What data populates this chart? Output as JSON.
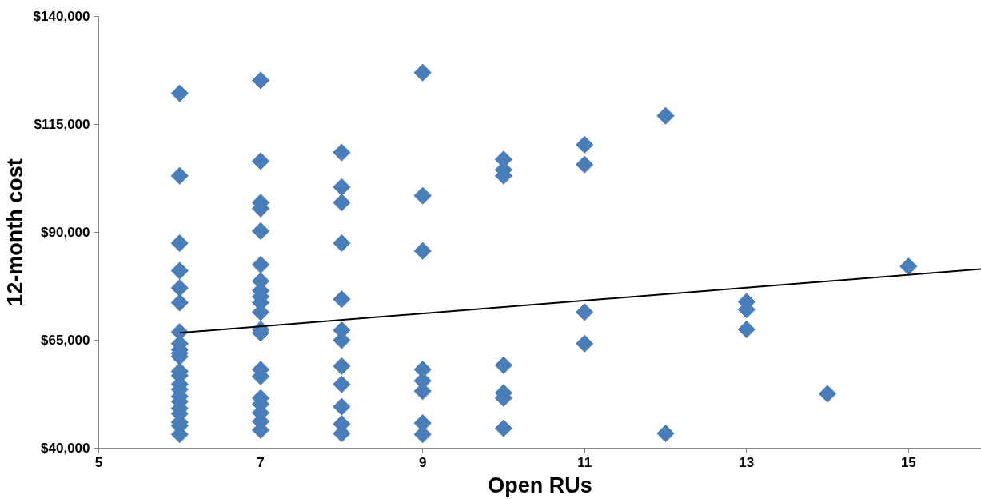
{
  "chart_data": {
    "type": "scatter",
    "xlabel": "Open RUs",
    "ylabel": "12-month cost",
    "grid": false,
    "xlim": [
      5,
      15.9
    ],
    "xticks": [
      5,
      7,
      9,
      11,
      13,
      15
    ],
    "ylim": [
      40000,
      140000
    ],
    "yticks": [
      {
        "value": 40000,
        "label": "$40,000"
      },
      {
        "value": 65000,
        "label": "$65,000"
      },
      {
        "value": 90000,
        "label": "$90,000"
      },
      {
        "value": 115000,
        "label": "$115,000"
      },
      {
        "value": 140000,
        "label": "$140,000"
      }
    ],
    "series": [
      {
        "marker": "diamond",
        "color": "#4a7ebb",
        "x": [
          6,
          6,
          6,
          6,
          6,
          6,
          6,
          6,
          6,
          6,
          6,
          6,
          6,
          6,
          6,
          6,
          6,
          6,
          6,
          6,
          6,
          6,
          7,
          7,
          7,
          7,
          7,
          7,
          7,
          7,
          7,
          7,
          7,
          7,
          7,
          7,
          7,
          7,
          7,
          7,
          7,
          7,
          8,
          8,
          8,
          8,
          8,
          8,
          8,
          8,
          8,
          8,
          8,
          8,
          9,
          9,
          9,
          9,
          9,
          9,
          9,
          9,
          10,
          10,
          10,
          10,
          10,
          10,
          10,
          11,
          11,
          11,
          11,
          12,
          12,
          13,
          13,
          13,
          14,
          15
        ],
        "values": [
          122200,
          103100,
          87500,
          81100,
          77100,
          73700,
          66900,
          64200,
          62800,
          61200,
          57800,
          56800,
          54800,
          53600,
          52000,
          50800,
          49200,
          48000,
          46000,
          45200,
          43200,
          62000,
          125200,
          106500,
          96900,
          95500,
          90300,
          82500,
          78700,
          76500,
          75100,
          73700,
          71500,
          67500,
          66700,
          58200,
          56600,
          51600,
          50200,
          48200,
          46200,
          44200,
          108500,
          100500,
          96900,
          87500,
          74500,
          67300,
          65000,
          59000,
          54800,
          49600,
          45600,
          43400,
          127000,
          98500,
          85700,
          58200,
          55600,
          53200,
          45800,
          43200,
          106900,
          104500,
          103100,
          59200,
          52800,
          51600,
          44600,
          110300,
          105700,
          71500,
          64200,
          117000,
          43400,
          73900,
          72100,
          67500,
          52600,
          82100
        ]
      },
      {
        "type": "line",
        "color": "#000000",
        "x": [
          6,
          15.9
        ],
        "values": [
          66700,
          81500
        ]
      }
    ]
  }
}
